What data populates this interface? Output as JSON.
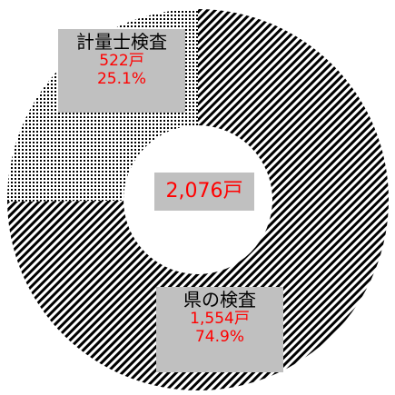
{
  "chart_data": {
    "type": "pie",
    "categories": [
      "県の検査",
      "計量士検査"
    ],
    "values": [
      1554,
      522
    ],
    "series": [
      {
        "category": "県の検査",
        "value": 1554,
        "value_label": "1,554戸",
        "percent_label": "74.9%",
        "fill": "diagonal-stripes"
      },
      {
        "category": "計量士検査",
        "value": 522,
        "value_label": "522戸",
        "percent_label": "25.1%",
        "fill": "dots"
      }
    ],
    "center_label": "2,076戸",
    "donut": true
  },
  "colors": {
    "pattern": "#000000",
    "label_box": "#c0c0c0",
    "value_text": "#ff0000"
  }
}
